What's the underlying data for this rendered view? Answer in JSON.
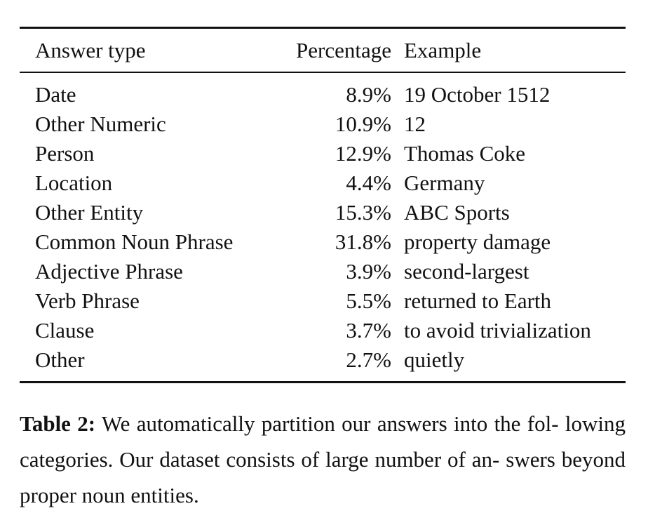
{
  "table": {
    "headers": {
      "type": "Answer type",
      "percentage": "Percentage",
      "example": "Example"
    },
    "rows": [
      {
        "type": "Date",
        "percentage": "8.9%",
        "example": "19 October 1512"
      },
      {
        "type": "Other Numeric",
        "percentage": "10.9%",
        "example": "12"
      },
      {
        "type": "Person",
        "percentage": "12.9%",
        "example": "Thomas Coke"
      },
      {
        "type": "Location",
        "percentage": "4.4%",
        "example": "Germany"
      },
      {
        "type": "Other Entity",
        "percentage": "15.3%",
        "example": "ABC Sports"
      },
      {
        "type": "Common Noun Phrase",
        "percentage": "31.8%",
        "example": "property damage"
      },
      {
        "type": "Adjective Phrase",
        "percentage": "3.9%",
        "example": "second-largest"
      },
      {
        "type": "Verb Phrase",
        "percentage": "5.5%",
        "example": "returned to Earth"
      },
      {
        "type": "Clause",
        "percentage": "3.7%",
        "example": "to avoid trivialization"
      },
      {
        "type": "Other",
        "percentage": "2.7%",
        "example": "quietly"
      }
    ]
  },
  "caption": {
    "label": "Table 2:",
    "lines": [
      "We automatically partition our answers into the fol-",
      "lowing categories. Our dataset consists of large number of an-",
      "swers beyond proper noun entities."
    ]
  },
  "chart_data": {
    "type": "table",
    "columns": [
      "Answer type",
      "Percentage",
      "Example"
    ],
    "rows": [
      [
        "Date",
        8.9,
        "19 October 1512"
      ],
      [
        "Other Numeric",
        10.9,
        "12"
      ],
      [
        "Person",
        12.9,
        "Thomas Coke"
      ],
      [
        "Location",
        4.4,
        "Germany"
      ],
      [
        "Other Entity",
        15.3,
        "ABC Sports"
      ],
      [
        "Common Noun Phrase",
        31.8,
        "property damage"
      ],
      [
        "Adjective Phrase",
        3.9,
        "second-largest"
      ],
      [
        "Verb Phrase",
        5.5,
        "returned to Earth"
      ],
      [
        "Clause",
        3.7,
        "to avoid trivialization"
      ],
      [
        "Other",
        2.7,
        "quietly"
      ]
    ]
  }
}
